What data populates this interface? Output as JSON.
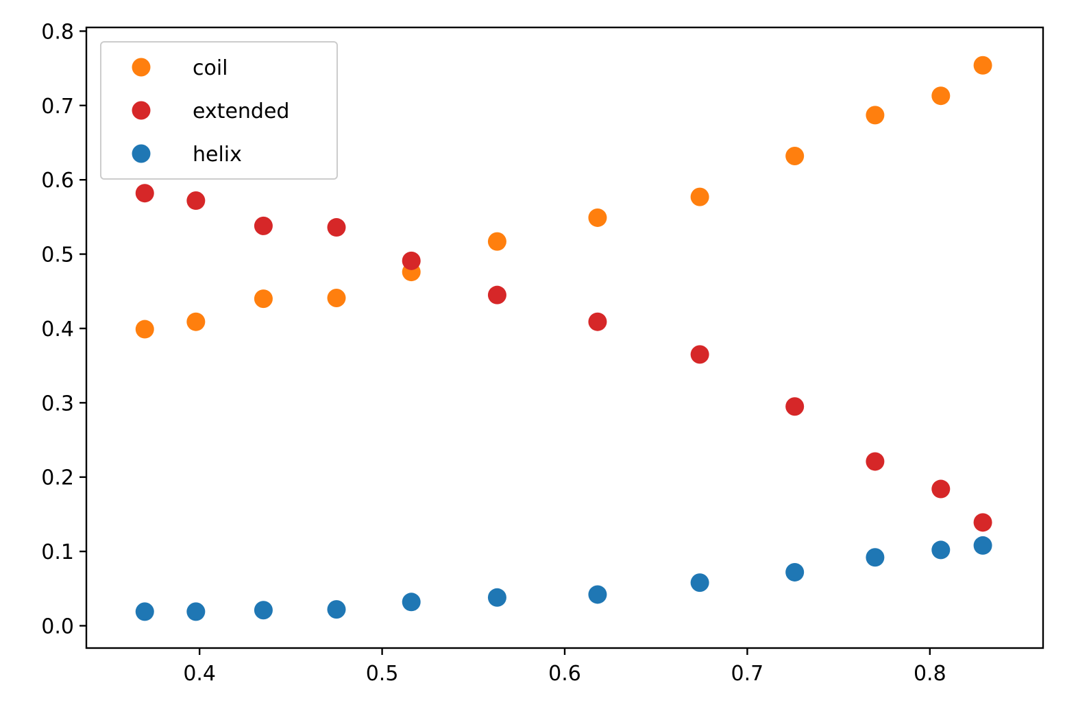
{
  "chart_data": {
    "type": "scatter",
    "title": "",
    "xlabel": "",
    "ylabel": "",
    "xlim": [
      0.338,
      0.862
    ],
    "ylim": [
      -0.03,
      0.805
    ],
    "xticks": [
      "0.4",
      "0.5",
      "0.6",
      "0.7",
      "0.8"
    ],
    "yticks": [
      "0.0",
      "0.1",
      "0.2",
      "0.3",
      "0.4",
      "0.5",
      "0.6",
      "0.7",
      "0.8"
    ],
    "grid": false,
    "legend_position": "top-left",
    "x": [
      0.37,
      0.398,
      0.435,
      0.475,
      0.516,
      0.563,
      0.618,
      0.674,
      0.726,
      0.77,
      0.806,
      0.829
    ],
    "series": [
      {
        "name": "coil",
        "color": "#ff7f0e",
        "values": [
          0.399,
          0.409,
          0.44,
          0.441,
          0.476,
          0.517,
          0.549,
          0.577,
          0.632,
          0.687,
          0.713,
          0.754
        ]
      },
      {
        "name": "extended",
        "color": "#d62728",
        "values": [
          0.582,
          0.572,
          0.538,
          0.536,
          0.491,
          0.445,
          0.409,
          0.365,
          0.295,
          0.221,
          0.184,
          0.139
        ]
      },
      {
        "name": "helix",
        "color": "#1f77b4",
        "values": [
          0.019,
          0.019,
          0.021,
          0.022,
          0.032,
          0.038,
          0.042,
          0.058,
          0.072,
          0.092,
          0.102,
          0.108
        ]
      }
    ]
  }
}
